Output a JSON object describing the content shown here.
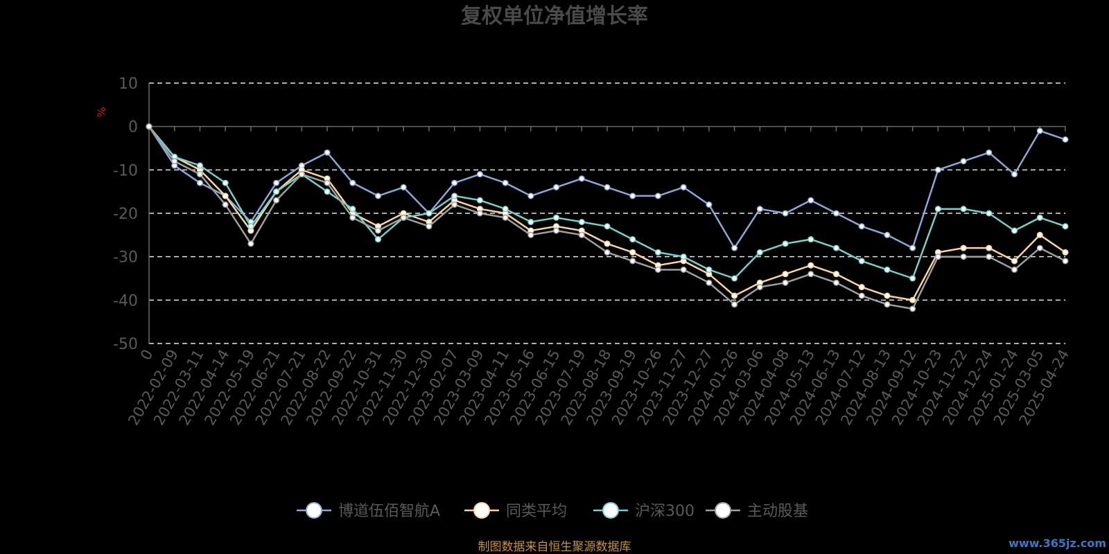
{
  "chart_data": {
    "type": "line",
    "title": "复权单位净值增长率",
    "ylabel": "%",
    "ylim": [
      -50,
      10
    ],
    "yticks": [
      10,
      0,
      -10,
      -20,
      -30,
      -40,
      -50
    ],
    "grid": true,
    "legend_position": "bottom",
    "x_tick_labels": [
      "0",
      "2022-02-09",
      "2022-03-11",
      "2022-04-14",
      "2022-05-19",
      "2022-06-21",
      "2022-07-21",
      "2022-08-22",
      "2022-09-22",
      "2022-10-31",
      "2022-11-30",
      "2022-12-30",
      "2023-02-07",
      "2023-03-09",
      "2023-04-11",
      "2023-05-16",
      "2023-06-15",
      "2023-07-19",
      "2023-08-18",
      "2023-09-19",
      "2023-10-26",
      "2023-11-27",
      "2023-12-27",
      "2024-01-26",
      "2024-03-06",
      "2024-04-08",
      "2024-05-13",
      "2024-06-13",
      "2024-07-12",
      "2024-08-13",
      "2024-09-12",
      "2024-10-23",
      "2024-11-22",
      "2024-12-24",
      "2025-01-24",
      "2025-03-05",
      "2025-04-24"
    ],
    "x_index": [
      0,
      1,
      2,
      3,
      4,
      5,
      6,
      7,
      8,
      9,
      10,
      11,
      12,
      13,
      14,
      15,
      16,
      17,
      18,
      19,
      20,
      21,
      22,
      23,
      24,
      25,
      26,
      27,
      28,
      29,
      30,
      31,
      32,
      33,
      34,
      35,
      36
    ],
    "series": [
      {
        "name": "博道伍佰智航A",
        "color": "#8aa8d8",
        "values": [
          0,
          -9,
          -13,
          -16,
          -22,
          -13,
          -9,
          -6,
          -13,
          -16,
          -14,
          -20,
          -13,
          -11,
          -13,
          -16,
          -14,
          -12,
          -14,
          -16,
          -16,
          -14,
          -18,
          -28,
          -19,
          -20,
          -17,
          -20,
          -23,
          -25,
          -28,
          -10,
          -8,
          -6,
          -11,
          -1,
          -3
        ]
      },
      {
        "name": "同类平均",
        "color": "#fcd39b",
        "values": [
          0,
          -7,
          -10,
          -16,
          -24,
          -15,
          -10,
          -12,
          -20,
          -23,
          -20,
          -22,
          -17,
          -19,
          -20,
          -24,
          -23,
          -24,
          -27,
          -29,
          -32,
          -31,
          -34,
          -39,
          -36,
          -34,
          -32,
          -34,
          -37,
          -39,
          -40,
          -29,
          -28,
          -28,
          -31,
          -25,
          -29
        ]
      },
      {
        "name": "沪深300",
        "color": "#76d1cc",
        "values": [
          0,
          -7,
          -9,
          -13,
          -23,
          -15,
          -11,
          -15,
          -19,
          -26,
          -21,
          -20,
          -16,
          -17,
          -19,
          -22,
          -21,
          -22,
          -23,
          -26,
          -29,
          -30,
          -33,
          -35,
          -29,
          -27,
          -26,
          -28,
          -31,
          -33,
          -35,
          -19,
          -19,
          -20,
          -24,
          -21,
          -23
        ]
      },
      {
        "name": "主动股基",
        "color": "#a0a0a0",
        "values": [
          0,
          -8,
          -11,
          -18,
          -27,
          -17,
          -11,
          -13,
          -21,
          -24,
          -21,
          -23,
          -18,
          -20,
          -21,
          -25,
          -24,
          -25,
          -29,
          -31,
          -33,
          -33,
          -36,
          -41,
          -37,
          -36,
          -34,
          -36,
          -39,
          -41,
          -42,
          -30,
          -30,
          -30,
          -33,
          -28,
          -31
        ]
      }
    ],
    "annotation": "制图数据来自恒生聚源数据库"
  },
  "watermark": "www.365jz.com"
}
